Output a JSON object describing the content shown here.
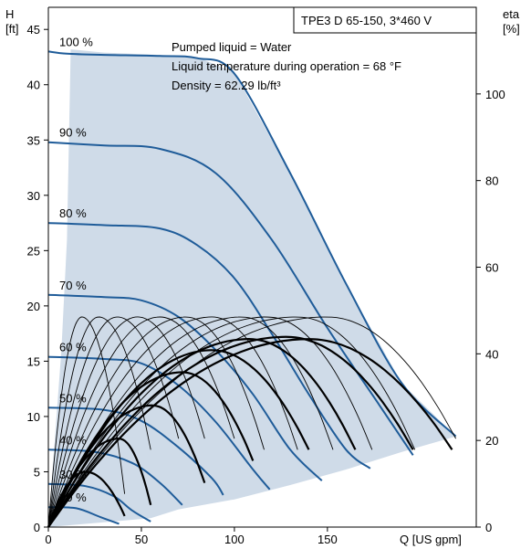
{
  "chart_data": {
    "type": "line",
    "title": "TPE3 D 65-150, 3*460 V",
    "info": [
      "Pumped liquid = Water",
      "Liquid temperature during operation = 68 °F",
      "Density = 62.29 lb/ft³"
    ],
    "y_left": {
      "label_line1": "H",
      "label_line2": "[ft]",
      "range": [
        0,
        47
      ],
      "ticks": [
        "0",
        "5",
        "10",
        "15",
        "20",
        "25",
        "30",
        "35",
        "40",
        "45"
      ]
    },
    "y_right": {
      "label_line1": "eta",
      "label_line2": "[%]",
      "range": [
        0,
        120
      ],
      "ticks": [
        "0",
        "20",
        "40",
        "60",
        "80",
        "100"
      ]
    },
    "x": {
      "label": "Q [US gpm]",
      "range": [
        0,
        230
      ],
      "ticks": [
        "0",
        "50",
        "100",
        "150"
      ]
    },
    "colors": {
      "envelope": "#cfdbe8",
      "speed_curve": "#1f5c99",
      "efficiency": "#000000"
    },
    "speed_curves": [
      {
        "label": "100 %",
        "points": [
          [
            0,
            43
          ],
          [
            10,
            42.8
          ],
          [
            30,
            42.7
          ],
          [
            60,
            42.6
          ],
          [
            80,
            42.4
          ],
          [
            100,
            41
          ],
          [
            130,
            32
          ],
          [
            160,
            22
          ],
          [
            190,
            13
          ],
          [
            219,
            8.2
          ]
        ]
      },
      {
        "label": "90 %",
        "points": [
          [
            0,
            34.8
          ],
          [
            30,
            34.5
          ],
          [
            60,
            34.2
          ],
          [
            90,
            32
          ],
          [
            120,
            26
          ],
          [
            150,
            18
          ],
          [
            178,
            11
          ],
          [
            196,
            6.5
          ]
        ]
      },
      {
        "label": "80 %",
        "points": [
          [
            0,
            27.5
          ],
          [
            30,
            27.3
          ],
          [
            60,
            27
          ],
          [
            80,
            25.5
          ],
          [
            100,
            22.5
          ],
          [
            120,
            17.5
          ],
          [
            140,
            12
          ],
          [
            160,
            7
          ],
          [
            173,
            5.3
          ]
        ]
      },
      {
        "label": "70 %",
        "points": [
          [
            0,
            21
          ],
          [
            30,
            20.8
          ],
          [
            50,
            20.5
          ],
          [
            70,
            19
          ],
          [
            90,
            16
          ],
          [
            110,
            12
          ],
          [
            130,
            7
          ],
          [
            147,
            4.2
          ]
        ]
      },
      {
        "label": "60 %",
        "points": [
          [
            0,
            15.4
          ],
          [
            30,
            15.2
          ],
          [
            50,
            14.8
          ],
          [
            70,
            12.8
          ],
          [
            90,
            9.5
          ],
          [
            110,
            5.2
          ],
          [
            119,
            3.4
          ]
        ]
      },
      {
        "label": "50 %",
        "points": [
          [
            0,
            10.8
          ],
          [
            30,
            10.6
          ],
          [
            50,
            9.6
          ],
          [
            70,
            7.2
          ],
          [
            88,
            4.4
          ],
          [
            94,
            2.9
          ]
        ]
      },
      {
        "label": "40 %",
        "points": [
          [
            0,
            7
          ],
          [
            25,
            6.8
          ],
          [
            45,
            5.8
          ],
          [
            60,
            4
          ],
          [
            72,
            2
          ]
        ]
      },
      {
        "label": "30 %",
        "points": [
          [
            0,
            3.9
          ],
          [
            20,
            3.7
          ],
          [
            35,
            2.8
          ],
          [
            45,
            1.5
          ],
          [
            55,
            0.5
          ]
        ]
      },
      {
        "label": "20 %",
        "points": [
          [
            0,
            1.8
          ],
          [
            15,
            1.7
          ],
          [
            28,
            0.9
          ],
          [
            38,
            0.3
          ]
        ]
      }
    ],
    "envelope": [
      [
        0,
        0
      ],
      [
        7,
        16
      ],
      [
        10,
        26
      ],
      [
        12,
        43.2
      ],
      [
        30,
        42.9
      ],
      [
        60,
        42.7
      ],
      [
        80,
        42.5
      ],
      [
        100,
        41.1
      ],
      [
        130,
        32
      ],
      [
        160,
        22
      ],
      [
        190,
        13
      ],
      [
        219,
        8.2
      ],
      [
        190,
        6.8
      ],
      [
        160,
        5.2
      ],
      [
        130,
        3.8
      ],
      [
        100,
        2.5
      ],
      [
        70,
        1.6
      ],
      [
        55,
        0.8
      ],
      [
        0,
        0
      ]
    ],
    "efficiency_curves": [
      {
        "start": 0,
        "peak": [
          18,
          19
        ],
        "end": [
          41,
          3
        ],
        "bold": false
      },
      {
        "start": 0,
        "peak": [
          27,
          19
        ],
        "end": [
          55,
          7
        ],
        "bold": false
      },
      {
        "start": 0,
        "peak": [
          37,
          19
        ],
        "end": [
          70,
          8
        ],
        "bold": false
      },
      {
        "start": 0,
        "peak": [
          48,
          19
        ],
        "end": [
          84,
          8
        ],
        "bold": false
      },
      {
        "start": 0,
        "peak": [
          60,
          19
        ],
        "end": [
          100,
          8
        ],
        "bold": false
      },
      {
        "start": 0,
        "peak": [
          74,
          19
        ],
        "end": [
          116,
          7
        ],
        "bold": false
      },
      {
        "start": 0,
        "peak": [
          88,
          19
        ],
        "end": [
          134,
          7
        ],
        "bold": false
      },
      {
        "start": 0,
        "peak": [
          104,
          19
        ],
        "end": [
          153,
          7
        ],
        "bold": false
      },
      {
        "start": 0,
        "peak": [
          118,
          19
        ],
        "end": [
          174,
          7
        ],
        "bold": false
      },
      {
        "start": 0,
        "peak": [
          134,
          19
        ],
        "end": [
          197,
          7
        ],
        "bold": false
      },
      {
        "start": 0,
        "peak": [
          150,
          19
        ],
        "end": [
          219,
          8
        ],
        "bold": false
      },
      {
        "start": 0,
        "peak": [
          20,
          5
        ],
        "end": [
          41,
          1
        ],
        "bold": true
      },
      {
        "start": 0,
        "peak": [
          38,
          8
        ],
        "end": [
          55,
          2
        ],
        "bold": true
      },
      {
        "start": 0,
        "peak": [
          56,
          11
        ],
        "end": [
          84,
          4
        ],
        "bold": true
      },
      {
        "start": 0,
        "peak": [
          72,
          14
        ],
        "end": [
          110,
          6
        ],
        "bold": true
      },
      {
        "start": 0,
        "peak": [
          88,
          16
        ],
        "end": [
          140,
          7
        ],
        "bold": true
      },
      {
        "start": 0,
        "peak": [
          108,
          17
        ],
        "end": [
          165,
          7
        ],
        "bold": true
      },
      {
        "start": 0,
        "peak": [
          128,
          17.2
        ],
        "end": [
          196,
          7
        ],
        "bold": true
      },
      {
        "start": 0,
        "peak": [
          140,
          17
        ],
        "end": [
          217,
          7
        ],
        "bold": true
      }
    ]
  }
}
